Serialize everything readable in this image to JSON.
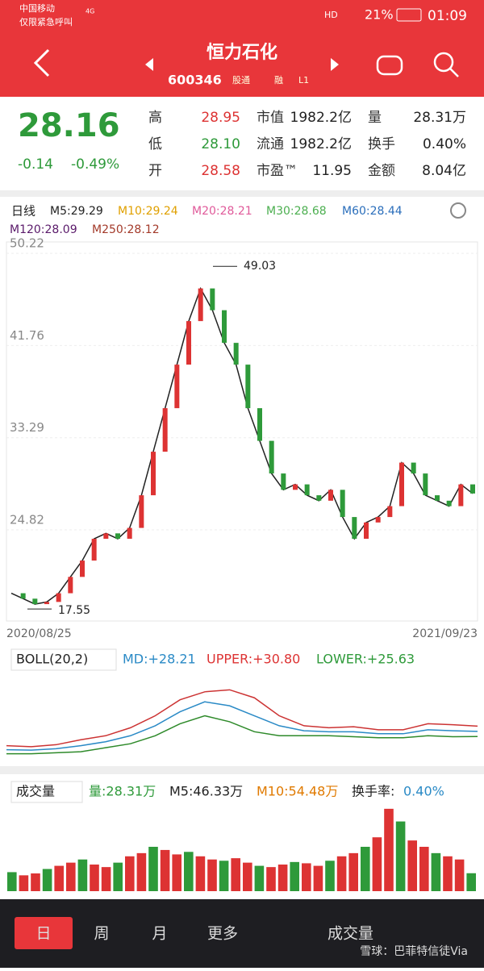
{
  "status": {
    "carrier": "中国移动",
    "note": "仅限紧急呼叫",
    "net": "4G",
    "hd": "HD",
    "battery": "21%",
    "time": "01:09"
  },
  "header": {
    "name": "恒力石化",
    "code": "600346",
    "tag": "股通",
    "margin": "融",
    "level": "L1"
  },
  "quote": {
    "price": "28.16",
    "change": "-0.14",
    "pct": "-0.49%",
    "fields": [
      [
        "高",
        "28.95"
      ],
      [
        "低",
        "28.10"
      ],
      [
        "开",
        "28.58"
      ],
      [
        "市值",
        "1982.2亿"
      ],
      [
        "流通",
        "1982.2亿"
      ],
      [
        "市盈™",
        "11.95"
      ],
      [
        "量",
        "28.31万"
      ],
      [
        "换手",
        "0.40%"
      ],
      [
        "金额",
        "8.04亿"
      ]
    ]
  },
  "ma": {
    "period": "日线",
    "items": [
      {
        "label": "M5:29.29",
        "color": "#222222"
      },
      {
        "label": "M10:29.24",
        "color": "#e0a000"
      },
      {
        "label": "M20:28.21",
        "color": "#e05a9a"
      },
      {
        "label": "M30:28.68",
        "color": "#4caf50"
      },
      {
        "label": "M60:28.44",
        "color": "#2a6ebb"
      },
      {
        "label": "M120:28.09",
        "color": "#5a1a6a"
      },
      {
        "label": "M250:28.12",
        "color": "#a33a2a"
      }
    ]
  },
  "price_chart": {
    "type": "line",
    "ylim": [
      16.45,
      51.27
    ],
    "yticks": [
      50.22,
      41.76,
      33.29,
      24.82
    ],
    "high_label": "49.03",
    "high": 49.03,
    "low_label": "17.55",
    "low": 17.55,
    "start": "2020/08/25",
    "end": "2021/09/23",
    "values": [
      19,
      18.5,
      18,
      18.2,
      19,
      20.5,
      22,
      24,
      24.5,
      24,
      25,
      28,
      32,
      36,
      40,
      44,
      47,
      45,
      42,
      40,
      36,
      33,
      30,
      28.5,
      29,
      28,
      27.5,
      28.5,
      26,
      24,
      25.5,
      26,
      27,
      31,
      30,
      28,
      27.5,
      27,
      29,
      28.16
    ]
  },
  "boll": {
    "title": "BOLL(20,2)",
    "md": "MD:+28.21",
    "upper": "UPPER:+30.80",
    "lower": "LOWER:+25.63",
    "ylim": [
      14,
      56
    ],
    "upper_values": [
      21,
      20.5,
      21.5,
      24,
      26,
      30,
      36,
      44,
      48,
      49,
      45,
      36,
      31,
      30,
      30.5,
      29,
      29,
      32,
      31.5,
      30.8
    ],
    "md_values": [
      19,
      18.8,
      19.5,
      21,
      23,
      26,
      31,
      38,
      43,
      41,
      36,
      31,
      28.5,
      28,
      28,
      27,
      27,
      29,
      28.5,
      28.21
    ],
    "lower_values": [
      17,
      17,
      17.5,
      18,
      20,
      22,
      26,
      32,
      36,
      33,
      28,
      26,
      26,
      26,
      25.5,
      25,
      25,
      26,
      25.5,
      25.63
    ]
  },
  "volume": {
    "title": "成交量",
    "vol": "量:28.31万",
    "m5": "M5:46.33万",
    "m10": "M10:54.48万",
    "turn": "换手率:",
    "turn_value": "0.40%",
    "max": 140,
    "values": [
      30,
      25,
      28,
      35,
      40,
      45,
      50,
      42,
      38,
      45,
      55,
      60,
      70,
      65,
      58,
      62,
      55,
      50,
      48,
      52,
      45,
      40,
      38,
      42,
      46,
      44,
      40,
      48,
      55,
      60,
      70,
      85,
      130,
      110,
      80,
      70,
      60,
      55,
      50,
      28.31
    ]
  },
  "nav": {
    "tabs": [
      "日",
      "周",
      "月",
      "更多"
    ],
    "indicator": "成交量",
    "watermark": "雪球：巴菲特信徒Via"
  }
}
